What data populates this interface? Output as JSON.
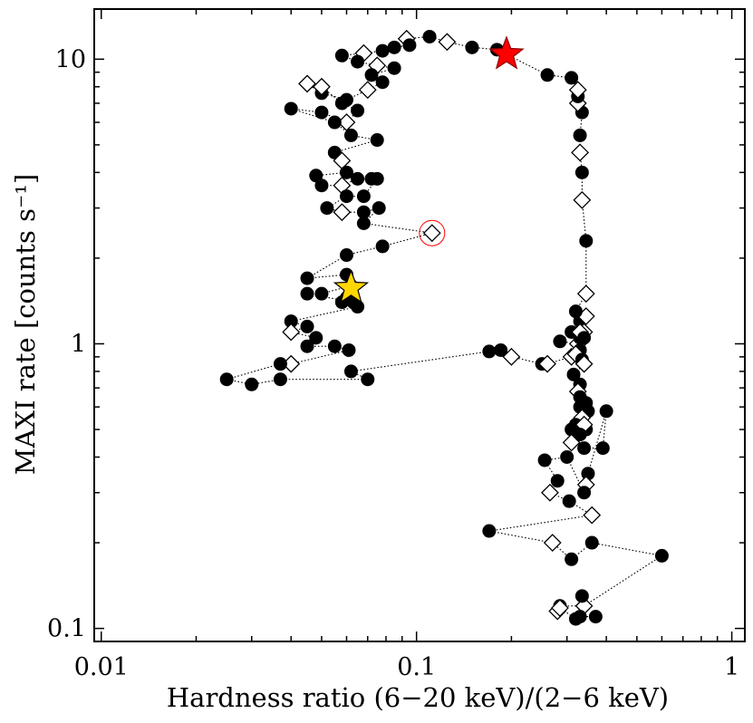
{
  "chart_data": {
    "type": "scatter",
    "title": "",
    "xlabel": "Hardness ratio (6−20 keV)/(2−6 keV)",
    "ylabel": "MAXI rate [counts s⁻¹]",
    "xscale": "log",
    "yscale": "log",
    "xlim": [
      0.0095,
      1.1
    ],
    "ylim": [
      0.09,
      15
    ],
    "x_ticks": [
      {
        "value": 0.01,
        "label": "0.01"
      },
      {
        "value": 0.1,
        "label": "0.1"
      },
      {
        "value": 1,
        "label": "1"
      }
    ],
    "y_ticks": [
      {
        "value": 0.1,
        "label": "0.1"
      },
      {
        "value": 1,
        "label": "1"
      },
      {
        "value": 10,
        "label": "10"
      }
    ],
    "track_line_style": "dotted",
    "track": [
      [
        0.193,
        10.4,
        "circle"
      ],
      [
        0.18,
        10.8,
        "circle"
      ],
      [
        0.15,
        11.0,
        "circle"
      ],
      [
        0.125,
        11.5,
        "diamond"
      ],
      [
        0.11,
        12.0,
        "circle"
      ],
      [
        0.093,
        11.8,
        "diamond"
      ],
      [
        0.095,
        11.2,
        "circle"
      ],
      [
        0.085,
        11.0,
        "circle"
      ],
      [
        0.078,
        10.7,
        "circle"
      ],
      [
        0.068,
        10.5,
        "diamond"
      ],
      [
        0.058,
        10.3,
        "circle"
      ],
      [
        0.065,
        9.8,
        "circle"
      ],
      [
        0.075,
        9.5,
        "diamond"
      ],
      [
        0.085,
        9.3,
        "circle"
      ],
      [
        0.072,
        8.8,
        "circle"
      ],
      [
        0.078,
        8.3,
        "circle"
      ],
      [
        0.07,
        7.8,
        "diamond"
      ],
      [
        0.06,
        7.2,
        "circle"
      ],
      [
        0.05,
        7.6,
        "circle"
      ],
      [
        0.045,
        8.2,
        "diamond"
      ],
      [
        0.05,
        8.0,
        "diamond"
      ],
      [
        0.058,
        7.0,
        "circle"
      ],
      [
        0.065,
        6.6,
        "circle"
      ],
      [
        0.06,
        6.0,
        "diamond"
      ],
      [
        0.05,
        6.5,
        "circle"
      ],
      [
        0.04,
        6.7,
        "circle"
      ],
      [
        0.055,
        6.0,
        "circle"
      ],
      [
        0.062,
        5.4,
        "circle"
      ],
      [
        0.075,
        5.2,
        "circle"
      ],
      [
        0.055,
        4.7,
        "circle"
      ],
      [
        0.058,
        4.4,
        "diamond"
      ],
      [
        0.06,
        4.0,
        "circle"
      ],
      [
        0.048,
        3.9,
        "circle"
      ],
      [
        0.05,
        3.6,
        "circle"
      ],
      [
        0.058,
        3.6,
        "diamond"
      ],
      [
        0.065,
        3.8,
        "circle"
      ],
      [
        0.072,
        3.8,
        "circle"
      ],
      [
        0.075,
        3.8,
        "circle"
      ],
      [
        0.068,
        3.3,
        "circle"
      ],
      [
        0.06,
        3.3,
        "circle"
      ],
      [
        0.052,
        3.0,
        "circle"
      ],
      [
        0.058,
        2.9,
        "diamond"
      ],
      [
        0.068,
        2.9,
        "circle"
      ],
      [
        0.076,
        3.0,
        "circle"
      ],
      [
        0.068,
        2.65,
        "circle"
      ],
      [
        0.112,
        2.45,
        "diamond"
      ],
      [
        0.078,
        2.2,
        "circle"
      ],
      [
        0.06,
        2.05,
        "circle"
      ],
      [
        0.045,
        1.7,
        "circle"
      ],
      [
        0.06,
        1.75,
        "circle"
      ],
      [
        0.062,
        1.6,
        "circle"
      ],
      [
        0.05,
        1.5,
        "circle"
      ],
      [
        0.045,
        1.5,
        "circle"
      ],
      [
        0.063,
        1.4,
        "circle"
      ],
      [
        0.06,
        1.45,
        "circle"
      ],
      [
        0.058,
        1.4,
        "circle"
      ],
      [
        0.065,
        1.35,
        "circle"
      ],
      [
        0.04,
        1.2,
        "circle"
      ],
      [
        0.045,
        1.15,
        "circle"
      ],
      [
        0.04,
        1.1,
        "diamond"
      ],
      [
        0.048,
        1.05,
        "circle"
      ],
      [
        0.045,
        0.98,
        "circle"
      ],
      [
        0.055,
        0.98,
        "circle"
      ],
      [
        0.061,
        0.95,
        "circle"
      ],
      [
        0.04,
        0.85,
        "diamond"
      ],
      [
        0.037,
        0.85,
        "circle"
      ],
      [
        0.025,
        0.75,
        "circle"
      ],
      [
        0.03,
        0.72,
        "circle"
      ],
      [
        0.037,
        0.75,
        "circle"
      ],
      [
        0.07,
        0.75,
        "circle"
      ],
      [
        0.062,
        0.8,
        "circle"
      ],
      [
        0.17,
        0.94,
        "circle"
      ],
      [
        0.185,
        0.95,
        "circle"
      ],
      [
        0.2,
        0.9,
        "diamond"
      ],
      [
        0.25,
        0.85,
        "circle"
      ],
      [
        0.26,
        0.85,
        "diamond"
      ],
      [
        0.31,
        0.9,
        "diamond"
      ],
      [
        0.325,
        1.0,
        "diamond"
      ],
      [
        0.285,
        1.02,
        "circle"
      ],
      [
        0.31,
        1.1,
        "circle"
      ],
      [
        0.33,
        1.2,
        "circle"
      ],
      [
        0.34,
        1.1,
        "diamond"
      ],
      [
        0.33,
        1.05,
        "circle"
      ],
      [
        0.345,
        1.25,
        "diamond"
      ],
      [
        0.32,
        1.3,
        "circle"
      ],
      [
        0.345,
        1.5,
        "diamond"
      ],
      [
        0.345,
        2.3,
        "circle"
      ],
      [
        0.335,
        3.2,
        "diamond"
      ],
      [
        0.335,
        4.0,
        "circle"
      ],
      [
        0.33,
        4.7,
        "diamond"
      ],
      [
        0.33,
        5.4,
        "circle"
      ],
      [
        0.335,
        6.5,
        "circle"
      ],
      [
        0.325,
        7.0,
        "diamond"
      ],
      [
        0.325,
        7.4,
        "circle"
      ],
      [
        0.325,
        7.8,
        "diamond"
      ],
      [
        0.31,
        8.6,
        "circle"
      ],
      [
        0.26,
        8.8,
        "circle"
      ],
      [
        0.193,
        10.4,
        "circle"
      ]
    ],
    "cluster": [
      [
        0.33,
        1.1,
        "diamond"
      ],
      [
        0.34,
        1.05,
        "circle"
      ],
      [
        0.33,
        0.95,
        "circle"
      ],
      [
        0.32,
        0.92,
        "diamond"
      ],
      [
        0.335,
        0.88,
        "circle"
      ],
      [
        0.34,
        0.85,
        "diamond"
      ],
      [
        0.315,
        0.78,
        "circle"
      ],
      [
        0.33,
        0.72,
        "circle"
      ],
      [
        0.325,
        0.68,
        "diamond"
      ],
      [
        0.33,
        0.65,
        "circle"
      ],
      [
        0.345,
        0.62,
        "circle"
      ],
      [
        0.33,
        0.6,
        "circle"
      ],
      [
        0.35,
        0.58,
        "circle"
      ],
      [
        0.335,
        0.55,
        "diamond"
      ],
      [
        0.32,
        0.52,
        "circle"
      ],
      [
        0.345,
        0.5,
        "circle"
      ],
      [
        0.34,
        0.52,
        "diamond"
      ],
      [
        0.31,
        0.5,
        "circle"
      ],
      [
        0.33,
        0.48,
        "circle"
      ],
      [
        0.31,
        0.45,
        "diamond"
      ],
      [
        0.34,
        0.43,
        "circle"
      ],
      [
        0.39,
        0.43,
        "circle"
      ],
      [
        0.4,
        0.58,
        "circle"
      ],
      [
        0.35,
        0.35,
        "circle"
      ],
      [
        0.345,
        0.32,
        "diamond"
      ],
      [
        0.34,
        0.3,
        "circle"
      ],
      [
        0.3,
        0.4,
        "circle"
      ],
      [
        0.255,
        0.39,
        "circle"
      ],
      [
        0.28,
        0.33,
        "circle"
      ],
      [
        0.265,
        0.3,
        "diamond"
      ],
      [
        0.305,
        0.28,
        "circle"
      ],
      [
        0.36,
        0.25,
        "diamond"
      ],
      [
        0.17,
        0.22,
        "circle"
      ],
      [
        0.27,
        0.2,
        "diamond"
      ],
      [
        0.31,
        0.175,
        "circle"
      ],
      [
        0.36,
        0.2,
        "circle"
      ],
      [
        0.6,
        0.18,
        "circle"
      ],
      [
        0.34,
        0.12,
        "diamond"
      ],
      [
        0.285,
        0.12,
        "circle"
      ],
      [
        0.28,
        0.115,
        "diamond"
      ],
      [
        0.285,
        0.118,
        "diamond"
      ],
      [
        0.32,
        0.108,
        "circle"
      ],
      [
        0.335,
        0.13,
        "circle"
      ],
      [
        0.33,
        0.11,
        "circle"
      ],
      [
        0.37,
        0.11,
        "circle"
      ]
    ],
    "markers": {
      "circle": {
        "fill": "#000000",
        "stroke": "#000000"
      },
      "diamond": {
        "fill": "#ffffff",
        "stroke": "#000000"
      }
    },
    "highlights": [
      {
        "label": "red-star",
        "x": 0.193,
        "y": 10.4,
        "shape": "star",
        "fill": "#ff0000",
        "stroke": "#8b0000"
      },
      {
        "label": "yellow-star",
        "x": 0.062,
        "y": 1.57,
        "shape": "star",
        "fill": "#ffd700",
        "stroke": "#000000"
      },
      {
        "label": "red-circle",
        "x": 0.112,
        "y": 2.45,
        "shape": "open-circle",
        "stroke": "#ff0000"
      }
    ]
  }
}
